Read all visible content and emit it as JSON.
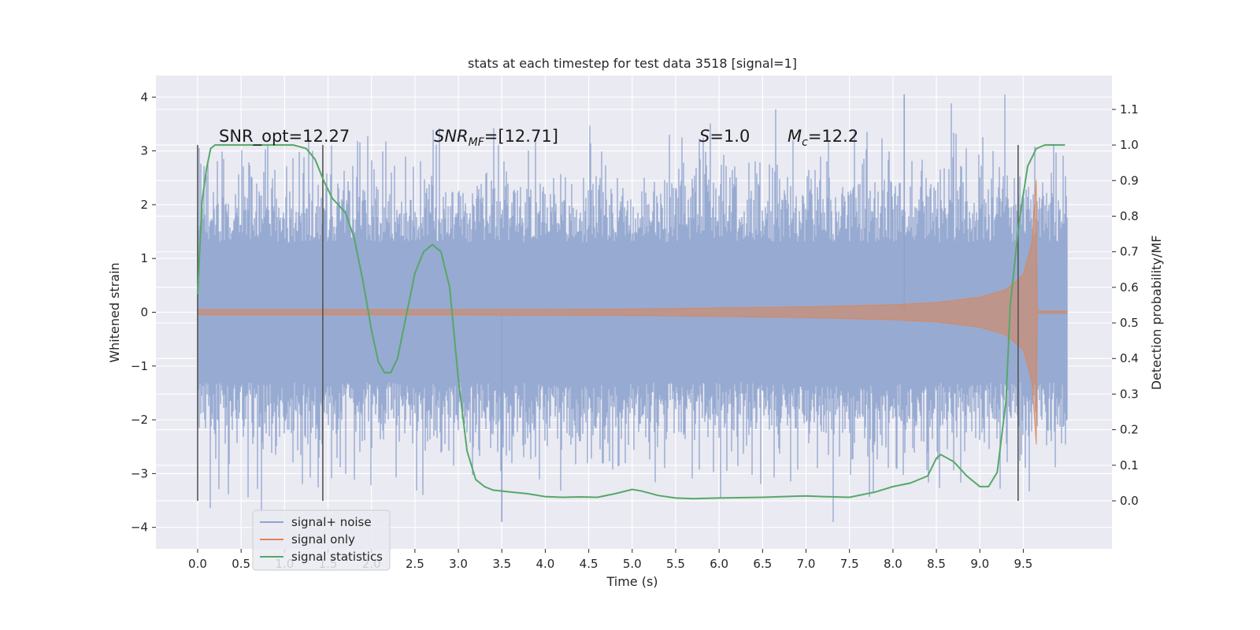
{
  "chart_data": {
    "type": "line",
    "title": "stats at each timestep for test data 3518 [signal=1]",
    "xlabel": "Time (s)",
    "ylabel": "Whitened strain",
    "y2label": "Detection probability/MF",
    "xlim": [
      -0.48,
      10.52
    ],
    "ylim": [
      -4.4,
      4.4
    ],
    "y2lim": [
      -0.135,
      1.195
    ],
    "x_ticks": [
      "0.0",
      "0.5",
      "1.0",
      "1.5",
      "2.0",
      "2.5",
      "3.0",
      "3.5",
      "4.0",
      "4.5",
      "5.0",
      "5.5",
      "6.0",
      "6.5",
      "7.0",
      "7.5",
      "8.0",
      "8.5",
      "9.0",
      "9.5"
    ],
    "y_ticks": [
      "4",
      "3",
      "2",
      "1",
      "0",
      "−1",
      "−2",
      "−3",
      "−4"
    ],
    "y2_ticks": [
      "1.1",
      "1.0",
      "0.9",
      "0.8",
      "0.7",
      "0.6",
      "0.5",
      "0.4",
      "0.3",
      "0.2",
      "0.1",
      "0.0"
    ],
    "grid": true,
    "legend_position": "lower-left",
    "annotations": {
      "snr_opt": "SNR_opt=12.27",
      "snr_mf_base": "SNR",
      "snr_mf_sub": "MF",
      "snr_mf_rest": "=[12.71]",
      "s_var": "S",
      "s_rest": "=1.0",
      "mc_var": "M",
      "mc_sub": "c",
      "mc_rest": "=12.2"
    },
    "vertical_markers_s": [
      0.0,
      1.44,
      9.44
    ],
    "colors": {
      "background": "#eaeaf2",
      "grid": "#ffffff",
      "noise": "#8fa4ce",
      "signal": "#dd8452",
      "statistics": "#55a868",
      "markers": "#555555"
    },
    "series": [
      {
        "name": "signal+ noise",
        "description_range": [
          0.0,
          10.0
        ],
        "envelope": {
          "typical_abs": 1.3,
          "spike_max": 4.05,
          "spike_min": -3.9
        }
      },
      {
        "name": "signal only",
        "x": [
          0.0,
          3.0,
          5.0,
          6.0,
          7.0,
          8.0,
          8.5,
          9.0,
          9.3,
          9.5,
          9.6,
          9.65,
          9.66,
          9.7,
          10.0
        ],
        "amplitude": [
          0.05,
          0.05,
          0.06,
          0.08,
          0.1,
          0.14,
          0.18,
          0.28,
          0.42,
          0.7,
          1.3,
          2.5,
          0.0,
          0.02,
          0.02
        ]
      },
      {
        "name": "signal statistics",
        "x": [
          0.0,
          0.05,
          0.1,
          0.15,
          0.2,
          0.3,
          0.5,
          0.7,
          0.9,
          1.1,
          1.25,
          1.35,
          1.45,
          1.55,
          1.7,
          1.8,
          1.9,
          2.0,
          2.08,
          2.15,
          2.22,
          2.3,
          2.4,
          2.5,
          2.6,
          2.7,
          2.8,
          2.9,
          3.0,
          3.1,
          3.2,
          3.3,
          3.4,
          3.6,
          3.8,
          4.0,
          4.2,
          4.4,
          4.6,
          4.8,
          5.0,
          5.1,
          5.3,
          5.5,
          5.7,
          6.0,
          6.5,
          7.0,
          7.2,
          7.5,
          7.8,
          8.0,
          8.2,
          8.4,
          8.5,
          8.55,
          8.7,
          8.85,
          9.0,
          9.1,
          9.2,
          9.3,
          9.35,
          9.45,
          9.55,
          9.65,
          9.75,
          9.9,
          9.98
        ],
        "y": [
          0.58,
          0.84,
          0.93,
          0.99,
          1.0,
          1.0,
          1.0,
          1.0,
          1.0,
          1.0,
          0.99,
          0.96,
          0.9,
          0.85,
          0.81,
          0.74,
          0.62,
          0.48,
          0.39,
          0.36,
          0.36,
          0.4,
          0.52,
          0.64,
          0.7,
          0.72,
          0.7,
          0.6,
          0.34,
          0.14,
          0.06,
          0.04,
          0.03,
          0.025,
          0.02,
          0.012,
          0.01,
          0.011,
          0.01,
          0.02,
          0.032,
          0.028,
          0.015,
          0.008,
          0.006,
          0.008,
          0.01,
          0.014,
          0.012,
          0.01,
          0.025,
          0.04,
          0.05,
          0.07,
          0.12,
          0.13,
          0.11,
          0.07,
          0.04,
          0.04,
          0.08,
          0.28,
          0.55,
          0.78,
          0.94,
          0.99,
          1.0,
          1.0,
          1.0
        ]
      }
    ]
  }
}
